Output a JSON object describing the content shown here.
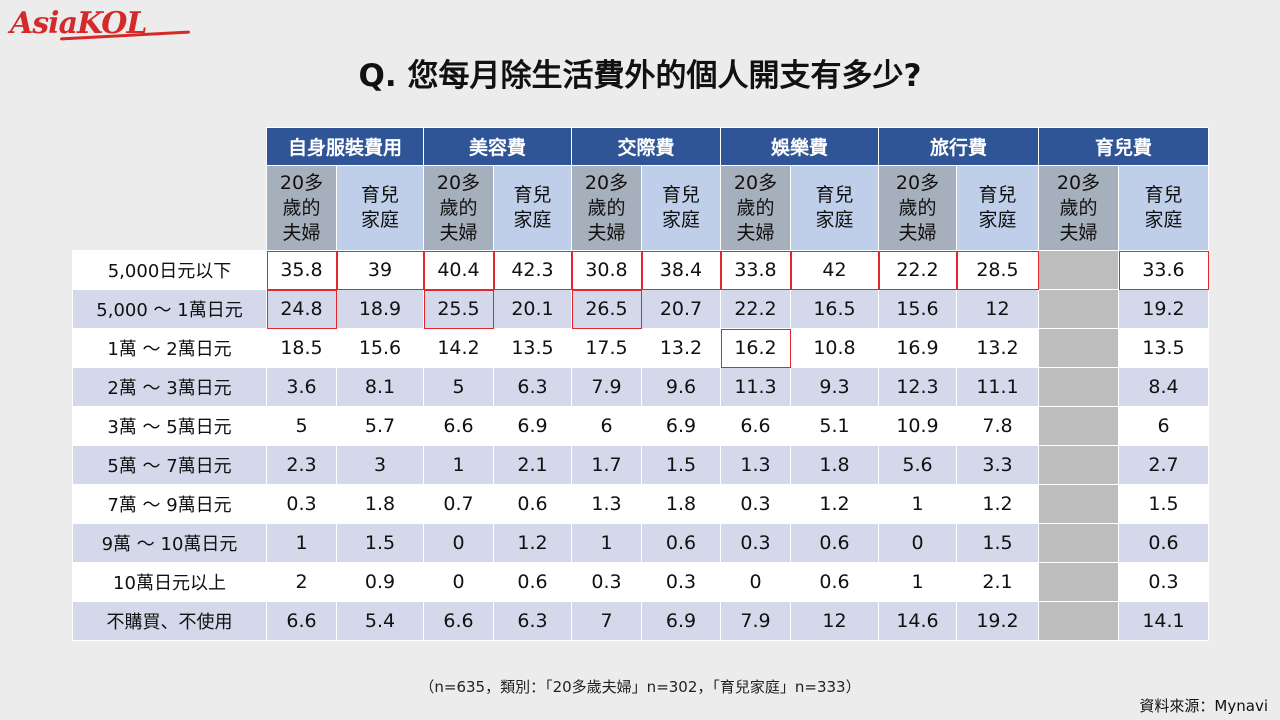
{
  "brand": {
    "logo_text": "AsiaKOL"
  },
  "title": "Q. 您每月除生活費外的個人開支有多少?",
  "table": {
    "categories": [
      "自身服裝費用",
      "美容費",
      "交際費",
      "娛樂費",
      "旅行費",
      "育兒費"
    ],
    "subheaders": [
      [
        "20多",
        "歲的",
        "夫婦"
      ],
      [
        "育兒",
        "家庭"
      ]
    ],
    "rows": [
      {
        "label": "5,000日元以下",
        "values": [
          "35.8",
          "39",
          "40.4",
          "42.3",
          "30.8",
          "38.4",
          "33.8",
          "42",
          "22.2",
          "28.5",
          "",
          "33.6"
        ]
      },
      {
        "label": "5,000 ～ 1萬日元",
        "values": [
          "24.8",
          "18.9",
          "25.5",
          "20.1",
          "26.5",
          "20.7",
          "22.2",
          "16.5",
          "15.6",
          "12",
          "",
          "19.2"
        ]
      },
      {
        "label": "1萬 ～ 2萬日元",
        "values": [
          "18.5",
          "15.6",
          "14.2",
          "13.5",
          "17.5",
          "13.2",
          "16.2",
          "10.8",
          "16.9",
          "13.2",
          "",
          "13.5"
        ]
      },
      {
        "label": "2萬 ～ 3萬日元",
        "values": [
          "3.6",
          "8.1",
          "5",
          "6.3",
          "7.9",
          "9.6",
          "11.3",
          "9.3",
          "12.3",
          "11.1",
          "",
          "8.4"
        ]
      },
      {
        "label": "3萬 ～ 5萬日元",
        "values": [
          "5",
          "5.7",
          "6.6",
          "6.9",
          "6",
          "6.9",
          "6.6",
          "5.1",
          "10.9",
          "7.8",
          "",
          "6"
        ]
      },
      {
        "label": "5萬 ～ 7萬日元",
        "values": [
          "2.3",
          "3",
          "1",
          "2.1",
          "1.7",
          "1.5",
          "1.3",
          "1.8",
          "5.6",
          "3.3",
          "",
          "2.7"
        ]
      },
      {
        "label": "7萬 ～ 9萬日元",
        "values": [
          "0.3",
          "1.8",
          "0.7",
          "0.6",
          "1.3",
          "1.8",
          "0.3",
          "1.2",
          "1",
          "1.2",
          "",
          "1.5"
        ]
      },
      {
        "label": "9萬 ～ 10萬日元",
        "values": [
          "1",
          "1.5",
          "0",
          "1.2",
          "1",
          "0.6",
          "0.3",
          "0.6",
          "0",
          "1.5",
          "",
          "0.6"
        ]
      },
      {
        "label": "10萬日元以上",
        "values": [
          "2",
          "0.9",
          "0",
          "0.6",
          "0.3",
          "0.3",
          "0",
          "0.6",
          "1",
          "2.1",
          "",
          "0.3"
        ]
      },
      {
        "label": "不購買、不使用",
        "values": [
          "6.6",
          "5.4",
          "6.6",
          "6.3",
          "7",
          "6.9",
          "7.9",
          "12",
          "14.6",
          "19.2",
          "",
          "14.1"
        ]
      }
    ],
    "highlighted": [
      [
        0,
        0
      ],
      [
        0,
        1
      ],
      [
        0,
        2
      ],
      [
        0,
        3
      ],
      [
        0,
        4
      ],
      [
        0,
        5
      ],
      [
        0,
        6
      ],
      [
        0,
        7
      ],
      [
        0,
        8
      ],
      [
        0,
        9
      ],
      [
        0,
        11
      ],
      [
        1,
        0
      ],
      [
        1,
        2
      ],
      [
        1,
        4
      ],
      [
        2,
        6
      ]
    ],
    "colors": {
      "header": "#2f5597",
      "highlight": "#e0292f",
      "nodata": "#bdbdbd"
    }
  },
  "footnote": "（n=635，類別：「20多歲夫婦」n=302，「育兒家庭」n=333）",
  "source": "資料來源：Mynavi"
}
